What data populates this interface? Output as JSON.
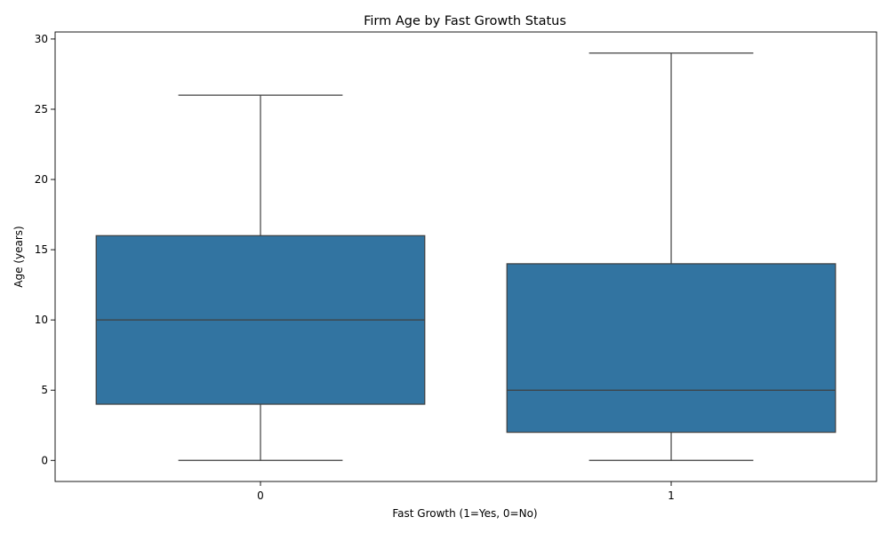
{
  "chart_data": {
    "type": "box",
    "title": "Firm Age by Fast Growth Status",
    "xlabel": "Fast Growth (1=Yes, 0=No)",
    "ylabel": "Age (years)",
    "categories": [
      "0",
      "1"
    ],
    "boxes": [
      {
        "category": "0",
        "whisker_low": 0,
        "q1": 4,
        "median": 10,
        "q3": 16,
        "whisker_high": 26
      },
      {
        "category": "1",
        "whisker_low": 0,
        "q1": 2,
        "median": 5,
        "q3": 14,
        "whisker_high": 29
      }
    ],
    "ylim": [
      -1.5,
      30.5
    ],
    "yticks": [
      0,
      5,
      10,
      15,
      20,
      25,
      30
    ],
    "grid": false,
    "box_color": "#3274a1",
    "line_color": "#3f3f3f"
  }
}
